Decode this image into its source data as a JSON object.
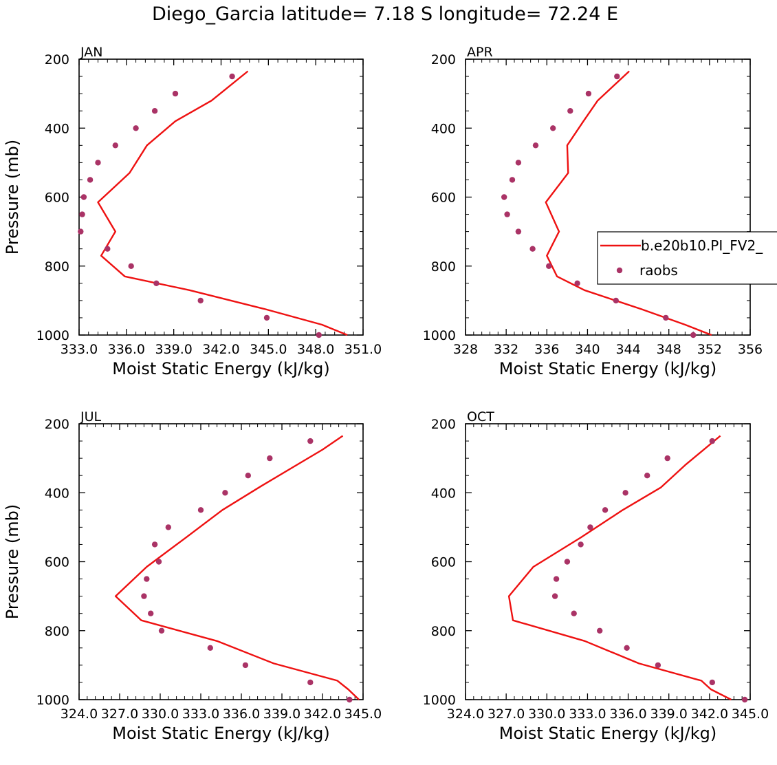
{
  "chart_data": {
    "type": "line",
    "title": "Diego_Garcia  latitude= 7.18 S longitude= 72.24 E",
    "legend": {
      "placement": "right of APR panel",
      "entries": [
        {
          "label": "b.e20b10.PI_FV2_",
          "kind": "line",
          "color": "#ee1111"
        },
        {
          "label": "raobs",
          "kind": "marker",
          "color": "#aa3366"
        }
      ]
    },
    "panels": [
      {
        "label": "JAN",
        "xlabel": "Moist Static Energy (kJ/kg)",
        "ylabel": "Pressure (mb)",
        "xlim": [
          333.0,
          351.0
        ],
        "ylim": [
          200,
          1000
        ],
        "x_ticks": [
          "333.0",
          "336.0",
          "339.0",
          "342.0",
          "345.0",
          "348.0",
          "351.0"
        ],
        "y_ticks": [
          "200",
          "400",
          "600",
          "800",
          "1000"
        ],
        "series": [
          {
            "name": "b.e20b10.PI_FV2_",
            "kind": "line",
            "pressure": [
              1000,
              970,
              925,
              870,
              830,
              770,
              700,
              615,
              530,
              450,
              380,
              320,
              235
            ],
            "mse": [
              350.0,
              348.4,
              344.8,
              340.0,
              335.9,
              334.4,
              335.3,
              334.2,
              336.2,
              337.3,
              339.1,
              341.4,
              343.7
            ]
          },
          {
            "name": "raobs",
            "kind": "marker",
            "pressure": [
              1000,
              950,
              900,
              850,
              800,
              750,
              700,
              650,
              600,
              550,
              500,
              450,
              400,
              350,
              300,
              250
            ],
            "mse": [
              348.2,
              344.9,
              340.7,
              337.9,
              336.3,
              334.8,
              333.1,
              333.2,
              333.3,
              333.7,
              334.2,
              335.3,
              336.6,
              337.8,
              339.1,
              342.7
            ]
          }
        ]
      },
      {
        "label": "APR",
        "xlabel": "Moist Static Energy (kJ/kg)",
        "ylabel": "",
        "xlim": [
          328,
          356
        ],
        "ylim": [
          200,
          1000
        ],
        "x_ticks": [
          "328",
          "332",
          "336",
          "340",
          "344",
          "348",
          "352",
          "356"
        ],
        "y_ticks": [
          "200",
          "400",
          "600",
          "800",
          "1000"
        ],
        "series": [
          {
            "name": "b.e20b10.PI_FV2_",
            "kind": "line",
            "pressure": [
              1000,
              970,
              925,
              870,
              830,
              770,
              700,
              615,
              530,
              450,
              380,
              320,
              235
            ],
            "mse": [
              352.2,
              349.6,
              345.3,
              339.7,
              337.0,
              336.0,
              337.2,
              335.9,
              338.1,
              338.0,
              339.6,
              341.0,
              344.1
            ]
          },
          {
            "name": "raobs",
            "kind": "marker",
            "pressure": [
              1000,
              950,
              900,
              850,
              800,
              750,
              700,
              650,
              600,
              550,
              500,
              450,
              400,
              350,
              300,
              250
            ],
            "mse": [
              350.4,
              347.7,
              342.8,
              339.0,
              336.2,
              334.6,
              333.2,
              332.1,
              331.8,
              332.6,
              333.2,
              334.9,
              336.6,
              338.3,
              340.1,
              342.9
            ]
          }
        ]
      },
      {
        "label": "JUL",
        "xlabel": "Moist Static Energy (kJ/kg)",
        "ylabel": "Pressure (mb)",
        "xlim": [
          324.0,
          345.0
        ],
        "ylim": [
          200,
          1000
        ],
        "x_ticks": [
          "324.0",
          "327.0",
          "330.0",
          "333.0",
          "336.0",
          "339.0",
          "342.0",
          "345.0"
        ],
        "y_ticks": [
          "200",
          "400",
          "600",
          "800",
          "1000"
        ],
        "series": [
          {
            "name": "b.e20b10.PI_FV2_",
            "kind": "line",
            "pressure": [
              1000,
              970,
              945,
              895,
              830,
              770,
              700,
              615,
              530,
              450,
              380,
              310,
              275,
              235
            ],
            "mse": [
              344.7,
              343.9,
              343.1,
              338.4,
              334.2,
              328.6,
              326.7,
              329.0,
              331.9,
              334.6,
              337.5,
              340.5,
              342.0,
              343.5
            ]
          },
          {
            "name": "raobs",
            "kind": "marker",
            "pressure": [
              1000,
              950,
              900,
              850,
              800,
              750,
              700,
              650,
              600,
              550,
              500,
              450,
              400,
              350,
              300,
              250
            ],
            "mse": [
              344.0,
              341.1,
              336.3,
              333.7,
              330.1,
              329.3,
              328.8,
              329.0,
              329.9,
              329.6,
              330.6,
              333.0,
              334.8,
              336.5,
              338.1,
              341.1
            ]
          }
        ]
      },
      {
        "label": "OCT",
        "xlabel": "Moist Static Energy (kJ/kg)",
        "ylabel": "",
        "xlim": [
          324.0,
          345.0
        ],
        "ylim": [
          200,
          1000
        ],
        "x_ticks": [
          "324.0",
          "327.0",
          "330.0",
          "333.0",
          "336.0",
          "339.0",
          "342.0",
          "345.0"
        ],
        "y_ticks": [
          "200",
          "400",
          "600",
          "800",
          "1000"
        ],
        "series": [
          {
            "name": "b.e20b10.PI_FV2_",
            "kind": "line",
            "pressure": [
              1000,
              970,
              945,
              895,
              830,
              770,
              700,
              615,
              530,
              450,
              385,
              320,
              235
            ],
            "mse": [
              343.6,
              342.1,
              341.4,
              336.8,
              332.8,
              327.5,
              327.2,
              329.0,
              332.5,
              335.6,
              338.4,
              340.2,
              342.8
            ]
          },
          {
            "name": "raobs",
            "kind": "marker",
            "pressure": [
              1000,
              950,
              900,
              850,
              800,
              750,
              700,
              650,
              600,
              550,
              500,
              450,
              400,
              350,
              300,
              250
            ],
            "mse": [
              344.6,
              342.2,
              338.2,
              335.9,
              333.9,
              332.0,
              330.6,
              330.7,
              331.5,
              332.5,
              333.2,
              334.3,
              335.8,
              337.4,
              338.9,
              342.2
            ]
          }
        ]
      }
    ]
  }
}
